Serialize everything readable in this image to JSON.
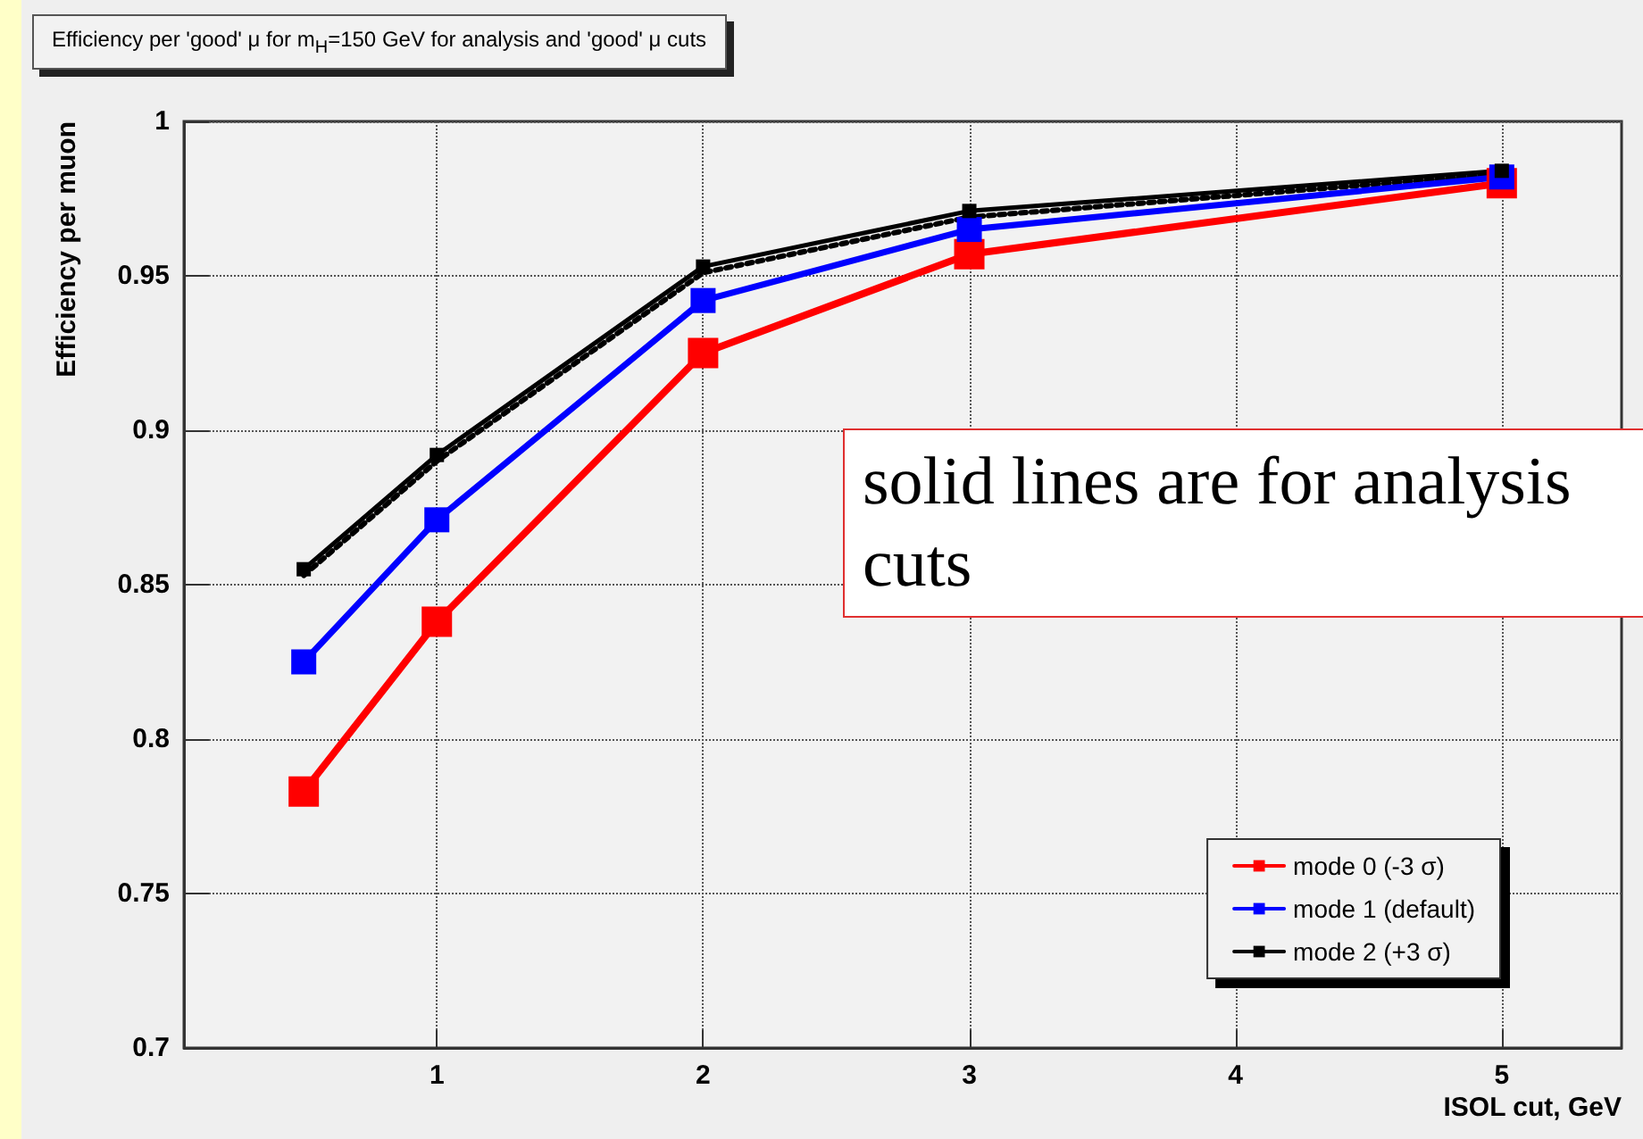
{
  "chart_data": {
    "type": "line",
    "title": "Efficiency per 'good' μ for m$_{H}$=150 GeV for analysis and 'good' μ cuts",
    "xlabel": "ISOL cut, GeV",
    "ylabel": "Efficiency per muon",
    "x": [
      0.5,
      1,
      2,
      3,
      5
    ],
    "series": [
      {
        "name": "mode 0 (-3 σ)",
        "color": "#ff0000",
        "values": [
          0.783,
          0.838,
          0.925,
          0.957,
          0.98
        ],
        "marker": "square",
        "line_style": "solid"
      },
      {
        "name": "mode 1 (default)",
        "color": "#0000ff",
        "values": [
          0.825,
          0.871,
          0.942,
          0.965,
          0.982
        ],
        "marker": "square",
        "line_style": "solid"
      },
      {
        "color": "#000000",
        "values": [
          0.853,
          0.89,
          0.951,
          0.969,
          0.983
        ],
        "marker": "none",
        "line_style": "dotted"
      },
      {
        "name": "mode 2 (+3 σ)",
        "color": "#000000",
        "values": [
          0.855,
          0.892,
          0.953,
          0.971,
          0.984
        ],
        "marker": "square",
        "line_style": "solid"
      }
    ],
    "xlim": [
      0.05,
      5.45
    ],
    "xticks": [
      1,
      2,
      3,
      4,
      5
    ],
    "ylim": [
      0.7,
      1
    ],
    "yticks": [
      0.7,
      0.75,
      0.8,
      0.85,
      0.9,
      0.95,
      1
    ],
    "grid": true,
    "legend": "bottom right",
    "annotations": [
      "solid lines are for analysis cuts"
    ]
  }
}
